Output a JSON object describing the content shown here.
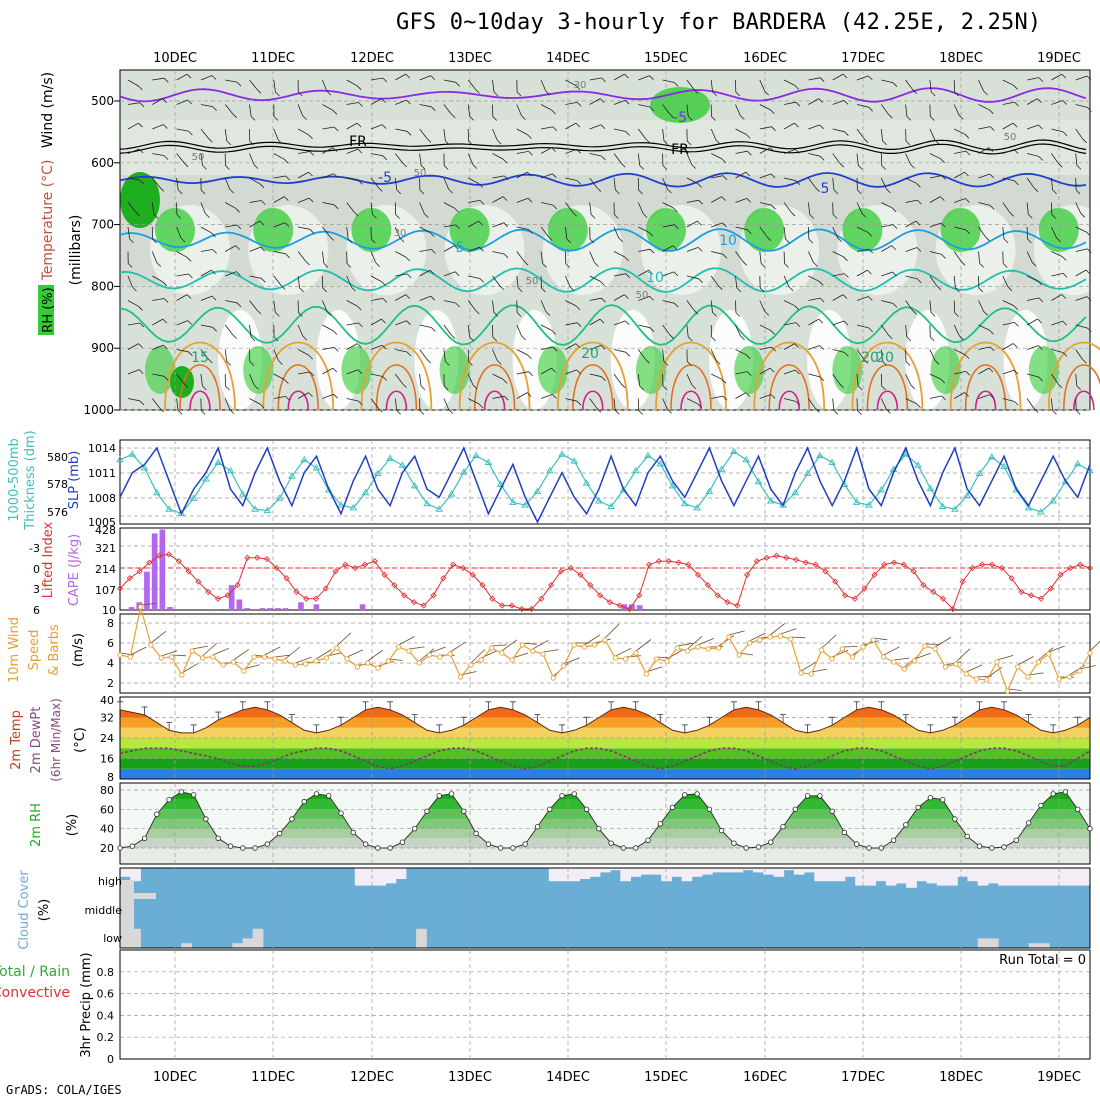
{
  "title": "GFS 0~10day 3-hourly for BARDERA (42.25E, 2.25N)",
  "credit": "GrADS: COLA/IGES",
  "dates": [
    "10DEC",
    "11DEC",
    "12DEC",
    "13DEC",
    "14DEC",
    "15DEC",
    "16DEC",
    "17DEC",
    "18DEC",
    "19DEC"
  ],
  "colors": {
    "rh_green": "#33cc33",
    "rh_gray": "#c8d0c8",
    "slp": "#1f3fbf",
    "thick": "#3cbfbf",
    "li": "#e03030",
    "cape": "#b366ee",
    "wind10": "#e8a030",
    "rh2m": "#22aa22",
    "cloud": "#6aaed6",
    "cloud_gap": "#d8d8d8"
  },
  "chart_data": [
    {
      "type": "heatmap",
      "id": "upper-air",
      "ylabel": "(millibars)",
      "yticks": [
        "500",
        "600",
        "700",
        "800",
        "900",
        "1000"
      ],
      "left_labels": [
        "Wind (m/s)",
        "Temperature (°C)",
        "RH (%)"
      ],
      "isotherm_labels": [
        "-5",
        "FR",
        "-5",
        "FR",
        "5",
        "5",
        "10",
        "10",
        "15",
        "20",
        "20",
        "20"
      ],
      "rh_labels": [
        "30",
        "50",
        "50",
        "30",
        "50",
        "50",
        "50"
      ]
    },
    {
      "type": "line",
      "id": "slp-thickness",
      "left_labels": [
        "1000-500mb",
        "Thickness (dm)"
      ],
      "right_labels": [
        "SLP (mb)"
      ],
      "yticks_left": [
        "580",
        "578",
        "576"
      ],
      "yticks_right": [
        "1014",
        "1011",
        "1008",
        "1005"
      ],
      "series": [
        {
          "name": "SLP",
          "values": [
            1008,
            1011,
            1012,
            1014,
            1010,
            1006,
            1009,
            1011,
            1014,
            1009,
            1007,
            1011,
            1014,
            1010,
            1007,
            1011,
            1013,
            1009,
            1006,
            1010,
            1013,
            1009,
            1007,
            1011,
            1013,
            1009,
            1008,
            1011,
            1014,
            1010,
            1006,
            1009,
            1012,
            1008,
            1005,
            1008,
            1011,
            1008,
            1006,
            1009,
            1013,
            1009,
            1007,
            1011,
            1013,
            1010,
            1008,
            1011,
            1014,
            1010,
            1007,
            1010,
            1013,
            1009,
            1007,
            1011,
            1014,
            1010,
            1007,
            1010,
            1014,
            1009,
            1007,
            1011,
            1014,
            1010,
            1007,
            1011,
            1014,
            1009,
            1007,
            1010,
            1013,
            1009,
            1007,
            1010,
            1013,
            1010,
            1008,
            1012
          ]
        },
        {
          "name": "Thickness",
          "values": [
            579.8,
            580.2,
            579.2,
            577.4,
            576.2,
            575.9,
            577.0,
            578.4,
            579.6,
            579.0,
            577.3,
            576.2,
            576.1,
            577.0,
            578.6,
            579.8,
            579.2,
            577.6,
            576.5,
            576.3,
            577.4,
            578.8,
            579.9,
            579.4,
            577.9,
            576.6,
            576.2,
            577.3,
            578.9,
            580.1,
            579.6,
            578.0,
            576.7,
            576.5,
            577.5,
            579.0,
            580.2,
            579.7,
            578.1,
            576.8,
            576.4,
            577.6,
            579.0,
            580.1,
            579.5,
            577.9,
            576.6,
            576.3,
            577.5,
            579.1,
            580.4,
            579.8,
            578.2,
            576.8,
            576.5,
            577.4,
            578.8,
            580.1,
            579.6,
            578.0,
            576.7,
            576.5,
            577.6,
            579.1,
            580.2,
            579.4,
            577.7,
            576.4,
            576.2,
            577.2,
            578.8,
            580.0,
            579.3,
            577.6,
            576.3,
            576.0,
            576.8,
            578.2,
            579.5,
            579.0
          ]
        }
      ]
    },
    {
      "type": "bar",
      "id": "li-cape",
      "left_labels": [
        "Lifted Index",
        "CAPE (J/kg)"
      ],
      "yticks_li": [
        "-3",
        "0",
        "3",
        "6"
      ],
      "yticks_cape": [
        "428",
        "321",
        "214",
        "107",
        "10"
      ],
      "cape_values": [
        0,
        15,
        40,
        200,
        400,
        420,
        15,
        0,
        0,
        0,
        0,
        5,
        5,
        0,
        130,
        55,
        10,
        5,
        10,
        10,
        10,
        10,
        0,
        40,
        0,
        30,
        0,
        0,
        0,
        0,
        0,
        30,
        0,
        0,
        0,
        0,
        0,
        0,
        0,
        0,
        0,
        0,
        0,
        0,
        0,
        0,
        0,
        0,
        0,
        0,
        0,
        0,
        0,
        0,
        0,
        0,
        0,
        0,
        0,
        0,
        0,
        0,
        0,
        0,
        0,
        30,
        30,
        25,
        0,
        0,
        0,
        0,
        0,
        0,
        0,
        0,
        0,
        0,
        0,
        0,
        0,
        0,
        0,
        0,
        0,
        0,
        0,
        0,
        0,
        0,
        0,
        0,
        0,
        0,
        0,
        0,
        0,
        0,
        0,
        0,
        0,
        0,
        0,
        0,
        0,
        0,
        0,
        0,
        0,
        0,
        0,
        0,
        0,
        0,
        0,
        0,
        0,
        0,
        0,
        0,
        0,
        0,
        0,
        0,
        0,
        0
      ],
      "li_values": [
        3.0,
        1.5,
        0.5,
        -0.8,
        -1.8,
        -2.0,
        -1.0,
        0.5,
        2.0,
        3.5,
        4.5,
        4.0,
        2.5,
        -1.5,
        -1.5,
        -1.3,
        0.0,
        1.5,
        3.5,
        4.5,
        4.5,
        3.0,
        0.5,
        -0.5,
        0.0,
        -0.5,
        -1.0,
        1.0,
        2.5,
        4.0,
        5.0,
        5.5,
        4.0,
        1.5,
        -0.5,
        0.0,
        1.0,
        2.5,
        4.5,
        5.5,
        5.5,
        6.0,
        6.0,
        4.5,
        2.5,
        0.5,
        0.0,
        1.0,
        2.5,
        4.0,
        5.0,
        5.5,
        6.0,
        4.0,
        -0.5,
        -1.0,
        -1.0,
        -0.8,
        -0.5,
        1.0,
        2.5,
        4.0,
        5.0,
        5.5,
        1.0,
        -1.0,
        -1.5,
        -1.8,
        -1.5,
        -1.2,
        -0.8,
        -0.5,
        0.5,
        2.0,
        4.0,
        4.5,
        3.0,
        1.0,
        -0.5,
        -0.8,
        -0.5,
        0.5,
        2.5,
        3.5,
        4.5,
        6.0,
        2.0,
        0.0,
        -0.5,
        -0.5,
        0.0,
        1.5,
        3.5,
        4.0,
        4.5,
        3.0,
        1.0,
        0.0,
        -0.5,
        0.0
      ]
    },
    {
      "type": "line",
      "id": "wind10m",
      "left_labels": [
        "10m Wind",
        "Speed",
        "& Barbs"
      ],
      "ylabel": "(m/s)",
      "yticks": [
        "8",
        "6",
        "4",
        "2"
      ],
      "values": [
        4.8,
        4.6,
        9.6,
        5.8,
        4.5,
        4.6,
        2.8,
        5.2,
        4.5,
        4.6,
        3.8,
        4.1,
        3.2,
        4.6,
        4.6,
        4.4,
        4.2,
        3.8,
        3.9,
        4.2,
        4.5,
        5.5,
        4.4,
        3.6,
        4.0,
        3.5,
        4.2,
        5.6,
        5.2,
        4.0,
        4.8,
        4.6,
        4.9,
        2.6,
        3.8,
        4.3,
        5.5,
        5.0,
        4.3,
        5.8,
        5.2,
        4.9,
        2.5,
        3.7,
        5.8,
        5.6,
        5.8,
        6.3,
        4.5,
        4.4,
        5.0,
        2.9,
        4.4,
        4.2,
        5.5,
        5.2,
        5.6,
        5.4,
        5.5,
        6.6,
        4.8,
        6.0,
        6.3,
        6.6,
        6.7,
        6.4,
        3.0,
        2.9,
        5.3,
        4.4,
        5.4,
        4.6,
        5.6,
        6.3,
        4.6,
        4.1,
        3.4,
        4.2,
        5.7,
        5.4,
        3.6,
        3.9,
        2.9,
        2.4,
        2.3,
        4.1,
        1.2,
        3.6,
        2.6,
        4.1,
        4.9,
        2.4,
        2.6,
        3.2,
        5.0
      ]
    },
    {
      "type": "area",
      "id": "temp-dewpt",
      "left_labels": [
        "2m Temp",
        "2m DewPt",
        "(6hr Min/Max)"
      ],
      "ylabel": "(°C)",
      "yticks": [
        "40",
        "32",
        "24",
        "16",
        "8"
      ],
      "temp_max_values": [
        35,
        34,
        33,
        30,
        27,
        26,
        26,
        28,
        31,
        33,
        35,
        36,
        35,
        33,
        30,
        27,
        26,
        27,
        29,
        32,
        35,
        36,
        35,
        33,
        30,
        27,
        26,
        27,
        29,
        32,
        35,
        36,
        35,
        33,
        30,
        27,
        26,
        27,
        29,
        32,
        35,
        36,
        35,
        33,
        30,
        27,
        26,
        27,
        29,
        32,
        35,
        36,
        35,
        33,
        30,
        27,
        26,
        27,
        29,
        32,
        35,
        36,
        35,
        33,
        30,
        27,
        26,
        27,
        29,
        32,
        35,
        36,
        35,
        33,
        30,
        27,
        26,
        27,
        29,
        32
      ],
      "dewpt_values": [
        18,
        19,
        20,
        20,
        20,
        19,
        18,
        17,
        16,
        14,
        13,
        13,
        14,
        16,
        18,
        19,
        20,
        20,
        19,
        17,
        15,
        13,
        12,
        13,
        15,
        17,
        19,
        20,
        20,
        19,
        17,
        15,
        13,
        12,
        13,
        15,
        17,
        19,
        20,
        20,
        19,
        17,
        15,
        13,
        12,
        13,
        15,
        17,
        19,
        20,
        20,
        19,
        17,
        15,
        13,
        12,
        13,
        15,
        17,
        19,
        20,
        20,
        19,
        17,
        15,
        13,
        12,
        13,
        15,
        17,
        19,
        20,
        20,
        19,
        17,
        15,
        13,
        13,
        16,
        19
      ]
    },
    {
      "type": "area",
      "id": "rh2m",
      "left_labels": [
        "2m RH",
        "(%)"
      ],
      "yticks": [
        "80",
        "60",
        "40",
        "20"
      ],
      "values": [
        20,
        22,
        30,
        55,
        70,
        78,
        75,
        50,
        30,
        22,
        20,
        20,
        24,
        35,
        50,
        68,
        76,
        74,
        56,
        36,
        24,
        20,
        20,
        26,
        40,
        58,
        74,
        76,
        58,
        35,
        24,
        20,
        20,
        24,
        42,
        60,
        74,
        76,
        60,
        40,
        25,
        20,
        20,
        28,
        45,
        62,
        75,
        76,
        60,
        38,
        25,
        20,
        21,
        26,
        42,
        60,
        74,
        74,
        58,
        36,
        24,
        20,
        20,
        28,
        44,
        62,
        72,
        70,
        50,
        32,
        22,
        20,
        21,
        28,
        46,
        64,
        76,
        78,
        60,
        40
      ]
    },
    {
      "type": "bar",
      "id": "cloud-cover",
      "left_labels": [
        "Cloud Cover",
        "(%)"
      ],
      "level_labels": [
        "high",
        "middle",
        "low"
      ],
      "high_values": [
        60,
        40,
        0,
        0,
        0,
        0,
        0,
        0,
        0,
        0,
        0,
        0,
        0,
        0,
        0,
        0,
        0,
        0,
        0,
        0,
        0,
        0,
        0,
        20,
        20,
        20,
        30,
        50,
        0,
        0,
        0,
        0,
        0,
        0,
        0,
        0,
        0,
        0,
        0,
        0,
        0,
        0,
        40,
        40,
        40,
        50,
        60,
        80,
        90,
        40,
        60,
        70,
        70,
        40,
        60,
        40,
        60,
        70,
        80,
        80,
        80,
        90,
        80,
        70,
        60,
        90,
        70,
        80,
        40,
        40,
        40,
        60,
        20,
        20,
        40,
        20,
        30,
        10,
        40,
        30,
        20,
        20,
        60,
        40,
        20,
        30,
        20,
        20,
        20,
        20,
        20,
        20,
        20,
        20,
        20
      ],
      "low_values": [
        80,
        80,
        0,
        0,
        0,
        0,
        20,
        0,
        0,
        0,
        0,
        20,
        40,
        80,
        0,
        0,
        0,
        0,
        0,
        0,
        0,
        0,
        0,
        0,
        0,
        0,
        0,
        0,
        0,
        80,
        0,
        0,
        0,
        0,
        0,
        0,
        0,
        0,
        0,
        0,
        0,
        0,
        0,
        0,
        0,
        0,
        0,
        0,
        0,
        0,
        0,
        0,
        0,
        0,
        0,
        0,
        0,
        0,
        0,
        0,
        0,
        0,
        0,
        0,
        0,
        0,
        0,
        0,
        0,
        0,
        0,
        0,
        0,
        0,
        0,
        0,
        0,
        0,
        0,
        0,
        0,
        0,
        0,
        0,
        40,
        40,
        0,
        0,
        0,
        20,
        20,
        0,
        0,
        0,
        0
      ]
    },
    {
      "type": "bar",
      "id": "precip",
      "left_labels": [
        "Total / Rain",
        "Convective"
      ],
      "ylabel": "3hr Precip (mm)",
      "yticks": [
        "0.8",
        "0.6",
        "0.4",
        "0.2",
        "0"
      ],
      "ylim": [
        0,
        1
      ],
      "run_total_label": "Run Total = 0",
      "values": []
    }
  ]
}
